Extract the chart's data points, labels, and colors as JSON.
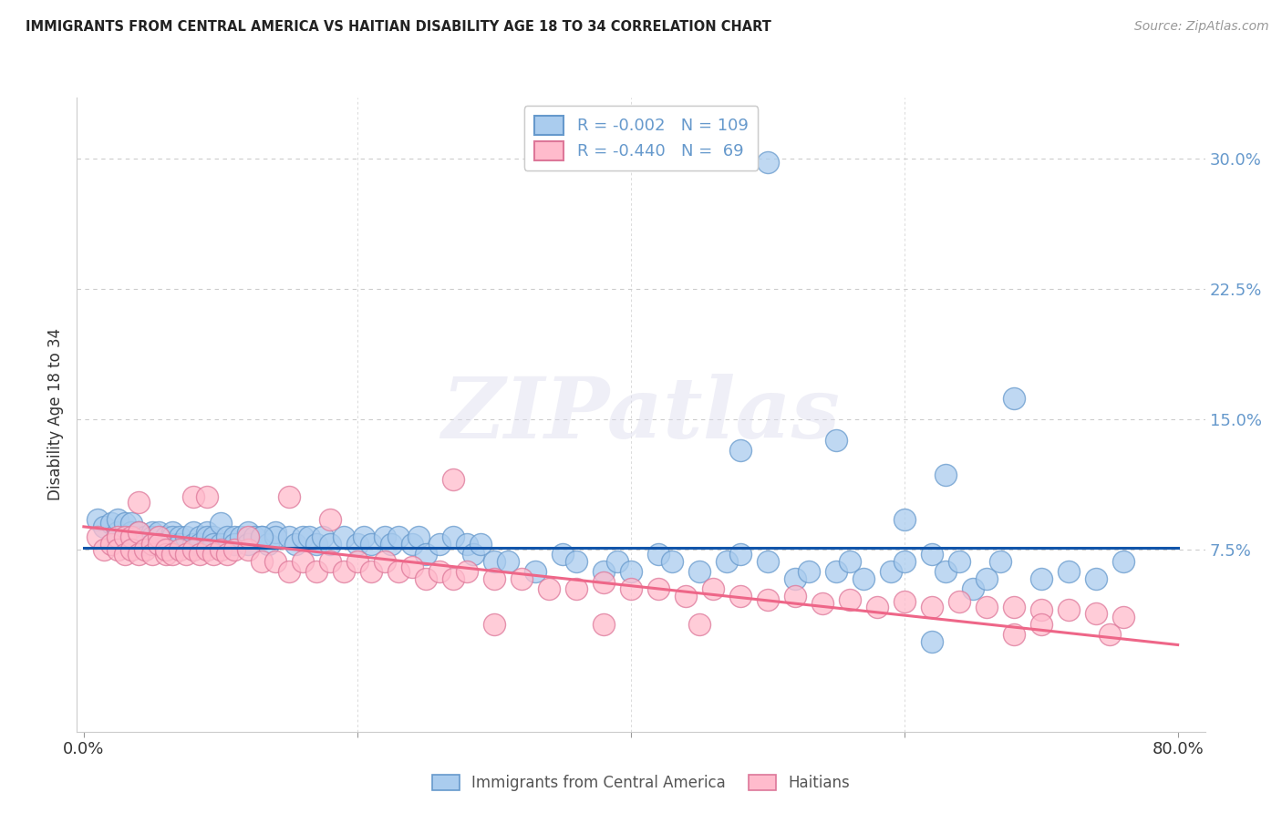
{
  "title": "IMMIGRANTS FROM CENTRAL AMERICA VS HAITIAN DISABILITY AGE 18 TO 34 CORRELATION CHART",
  "source": "Source: ZipAtlas.com",
  "ylabel": "Disability Age 18 to 34",
  "y_tick_labels": [
    "7.5%",
    "15.0%",
    "22.5%",
    "30.0%"
  ],
  "y_tick_values": [
    0.075,
    0.15,
    0.225,
    0.3
  ],
  "xlim": [
    -0.005,
    0.82
  ],
  "ylim": [
    -0.03,
    0.335
  ],
  "blue_edge_color": "#6699CC",
  "blue_face_color": "#AACCEE",
  "pink_edge_color": "#DD7799",
  "pink_face_color": "#FFBBCC",
  "line_blue_color": "#1155AA",
  "line_pink_color": "#EE6688",
  "legend_R_blue": "-0.002",
  "legend_N_blue": "109",
  "legend_R_pink": "-0.440",
  "legend_N_pink": "69",
  "watermark_text": "ZIPatlas",
  "grid_color": "#CCCCCC",
  "blue_line_y_start": 0.076,
  "blue_line_y_end": 0.076,
  "pink_line_y_start": 0.088,
  "pink_line_y_end": 0.02,
  "blue_x": [
    0.01,
    0.015,
    0.02,
    0.025,
    0.025,
    0.03,
    0.03,
    0.03,
    0.035,
    0.035,
    0.04,
    0.04,
    0.04,
    0.045,
    0.045,
    0.05,
    0.05,
    0.05,
    0.055,
    0.055,
    0.06,
    0.06,
    0.065,
    0.065,
    0.065,
    0.07,
    0.07,
    0.075,
    0.08,
    0.08,
    0.085,
    0.085,
    0.09,
    0.09,
    0.095,
    0.095,
    0.1,
    0.1,
    0.105,
    0.11,
    0.11,
    0.115,
    0.12,
    0.12,
    0.125,
    0.13,
    0.135,
    0.14,
    0.14,
    0.15,
    0.155,
    0.16,
    0.165,
    0.17,
    0.175,
    0.18,
    0.19,
    0.2,
    0.205,
    0.21,
    0.22,
    0.225,
    0.23,
    0.24,
    0.245,
    0.25,
    0.26,
    0.27,
    0.28,
    0.285,
    0.29,
    0.3,
    0.31,
    0.33,
    0.35,
    0.36,
    0.38,
    0.39,
    0.4,
    0.42,
    0.43,
    0.45,
    0.47,
    0.48,
    0.5,
    0.52,
    0.53,
    0.55,
    0.56,
    0.57,
    0.59,
    0.6,
    0.62,
    0.63,
    0.64,
    0.65,
    0.66,
    0.67,
    0.7,
    0.72,
    0.74,
    0.76,
    0.55,
    0.62,
    0.63,
    0.68,
    0.5,
    0.48,
    0.13,
    0.6
  ],
  "blue_y": [
    0.092,
    0.088,
    0.09,
    0.085,
    0.092,
    0.082,
    0.09,
    0.082,
    0.085,
    0.09,
    0.082,
    0.078,
    0.085,
    0.082,
    0.078,
    0.085,
    0.082,
    0.078,
    0.082,
    0.085,
    0.082,
    0.078,
    0.085,
    0.082,
    0.078,
    0.082,
    0.078,
    0.082,
    0.085,
    0.078,
    0.082,
    0.078,
    0.085,
    0.082,
    0.082,
    0.078,
    0.09,
    0.078,
    0.082,
    0.082,
    0.078,
    0.082,
    0.085,
    0.078,
    0.082,
    0.082,
    0.078,
    0.085,
    0.082,
    0.082,
    0.078,
    0.082,
    0.082,
    0.078,
    0.082,
    0.078,
    0.082,
    0.078,
    0.082,
    0.078,
    0.082,
    0.078,
    0.082,
    0.078,
    0.082,
    0.072,
    0.078,
    0.082,
    0.078,
    0.072,
    0.078,
    0.068,
    0.068,
    0.062,
    0.072,
    0.068,
    0.062,
    0.068,
    0.062,
    0.072,
    0.068,
    0.062,
    0.068,
    0.072,
    0.068,
    0.058,
    0.062,
    0.062,
    0.068,
    0.058,
    0.062,
    0.068,
    0.072,
    0.062,
    0.068,
    0.052,
    0.058,
    0.068,
    0.058,
    0.062,
    0.058,
    0.068,
    0.138,
    0.022,
    0.118,
    0.162,
    0.298,
    0.132,
    0.082,
    0.092
  ],
  "pink_x": [
    0.01,
    0.015,
    0.02,
    0.025,
    0.025,
    0.03,
    0.03,
    0.035,
    0.035,
    0.04,
    0.04,
    0.045,
    0.05,
    0.05,
    0.055,
    0.055,
    0.06,
    0.06,
    0.065,
    0.07,
    0.075,
    0.08,
    0.085,
    0.09,
    0.095,
    0.1,
    0.105,
    0.11,
    0.12,
    0.13,
    0.14,
    0.15,
    0.16,
    0.17,
    0.18,
    0.19,
    0.2,
    0.21,
    0.22,
    0.23,
    0.24,
    0.25,
    0.26,
    0.27,
    0.28,
    0.3,
    0.32,
    0.34,
    0.36,
    0.38,
    0.4,
    0.42,
    0.44,
    0.46,
    0.48,
    0.5,
    0.52,
    0.54,
    0.56,
    0.58,
    0.6,
    0.62,
    0.64,
    0.66,
    0.68,
    0.7,
    0.72,
    0.74,
    0.76
  ],
  "pink_y": [
    0.082,
    0.075,
    0.078,
    0.082,
    0.075,
    0.082,
    0.072,
    0.082,
    0.075,
    0.085,
    0.072,
    0.075,
    0.078,
    0.072,
    0.082,
    0.078,
    0.072,
    0.075,
    0.072,
    0.075,
    0.072,
    0.075,
    0.072,
    0.075,
    0.072,
    0.075,
    0.072,
    0.075,
    0.075,
    0.068,
    0.068,
    0.062,
    0.068,
    0.062,
    0.068,
    0.062,
    0.068,
    0.062,
    0.068,
    0.062,
    0.065,
    0.058,
    0.062,
    0.058,
    0.062,
    0.058,
    0.058,
    0.052,
    0.052,
    0.056,
    0.052,
    0.052,
    0.048,
    0.052,
    0.048,
    0.046,
    0.048,
    0.044,
    0.046,
    0.042,
    0.045,
    0.042,
    0.045,
    0.042,
    0.042,
    0.04,
    0.04,
    0.038,
    0.036
  ],
  "pink_outlier_x": [
    0.04,
    0.08,
    0.09,
    0.12,
    0.15,
    0.18,
    0.27,
    0.3,
    0.38,
    0.45,
    0.68,
    0.7,
    0.75
  ],
  "pink_outlier_y": [
    0.102,
    0.105,
    0.105,
    0.082,
    0.105,
    0.092,
    0.115,
    0.032,
    0.032,
    0.032,
    0.026,
    0.032,
    0.026
  ]
}
